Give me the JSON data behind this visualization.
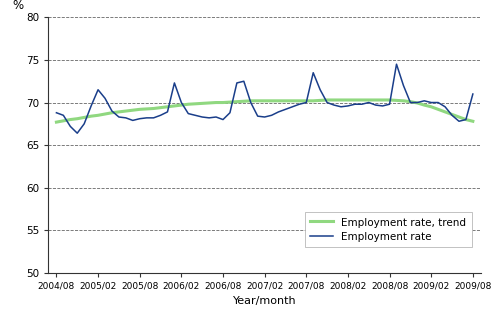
{
  "xlabel": "Year/month",
  "ylabel": "%",
  "ylim": [
    50,
    80
  ],
  "yticks": [
    50,
    55,
    60,
    65,
    70,
    75,
    80
  ],
  "xlabels": [
    "2004/08",
    "2005/02",
    "2005/08",
    "2006/02",
    "2006/08",
    "2007/02",
    "2007/08",
    "2008/02",
    "2008/08",
    "2009/02",
    "2009/08"
  ],
  "employment_rate": [
    68.8,
    68.5,
    67.2,
    66.4,
    67.5,
    69.6,
    71.5,
    70.5,
    69.0,
    68.3,
    68.2,
    67.9,
    68.1,
    68.2,
    68.2,
    68.5,
    68.9,
    72.3,
    70.0,
    68.7,
    68.5,
    68.3,
    68.2,
    68.3,
    68.0,
    68.8,
    72.3,
    72.5,
    70.0,
    68.4,
    68.3,
    68.5,
    68.9,
    69.2,
    69.5,
    69.8,
    70.0,
    73.5,
    71.5,
    70.0,
    69.7,
    69.5,
    69.6,
    69.8,
    69.8,
    70.0,
    69.7,
    69.6,
    69.8,
    74.5,
    72.0,
    70.0,
    70.0,
    70.2,
    70.0,
    70.0,
    69.5,
    68.5,
    67.8,
    68.0,
    71.0,
    69.5
  ],
  "employment_trend": [
    67.7,
    67.85,
    68.0,
    68.1,
    68.25,
    68.4,
    68.5,
    68.65,
    68.8,
    68.9,
    69.0,
    69.1,
    69.2,
    69.25,
    69.3,
    69.4,
    69.5,
    69.6,
    69.7,
    69.8,
    69.85,
    69.9,
    69.95,
    70.0,
    70.0,
    70.05,
    70.1,
    70.15,
    70.2,
    70.2,
    70.2,
    70.2,
    70.2,
    70.2,
    70.2,
    70.2,
    70.2,
    70.2,
    70.25,
    70.3,
    70.3,
    70.3,
    70.3,
    70.3,
    70.3,
    70.3,
    70.3,
    70.3,
    70.3,
    70.25,
    70.2,
    70.1,
    69.95,
    69.7,
    69.5,
    69.2,
    68.9,
    68.6,
    68.3,
    68.0,
    67.8,
    67.6
  ],
  "rate_color": "#1a3e8a",
  "trend_color": "#90d880",
  "rate_label": "Employment rate",
  "trend_label": "Employment rate, trend",
  "background_color": "#ffffff",
  "grid_color": "#000000",
  "figsize": [
    4.98,
    3.12
  ],
  "dpi": 100
}
